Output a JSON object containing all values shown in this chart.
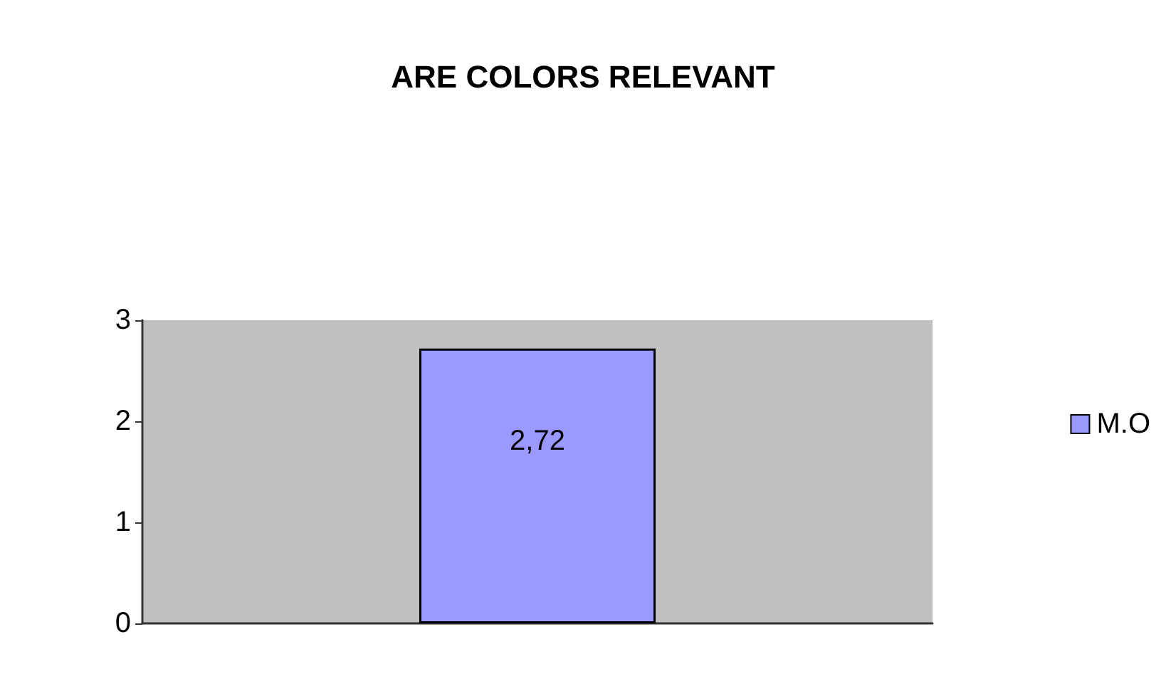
{
  "chart_data": {
    "type": "bar",
    "title": "ARE COLORS RELEVANT",
    "categories": [
      null
    ],
    "series": [
      {
        "name": "M.O",
        "color": "#9999ff",
        "values": [
          2.72
        ],
        "value_labels": [
          "2,72"
        ]
      }
    ],
    "ylim": [
      0,
      3
    ],
    "yticks": [
      0,
      1,
      2,
      3
    ],
    "grid": false,
    "legend": "right"
  }
}
